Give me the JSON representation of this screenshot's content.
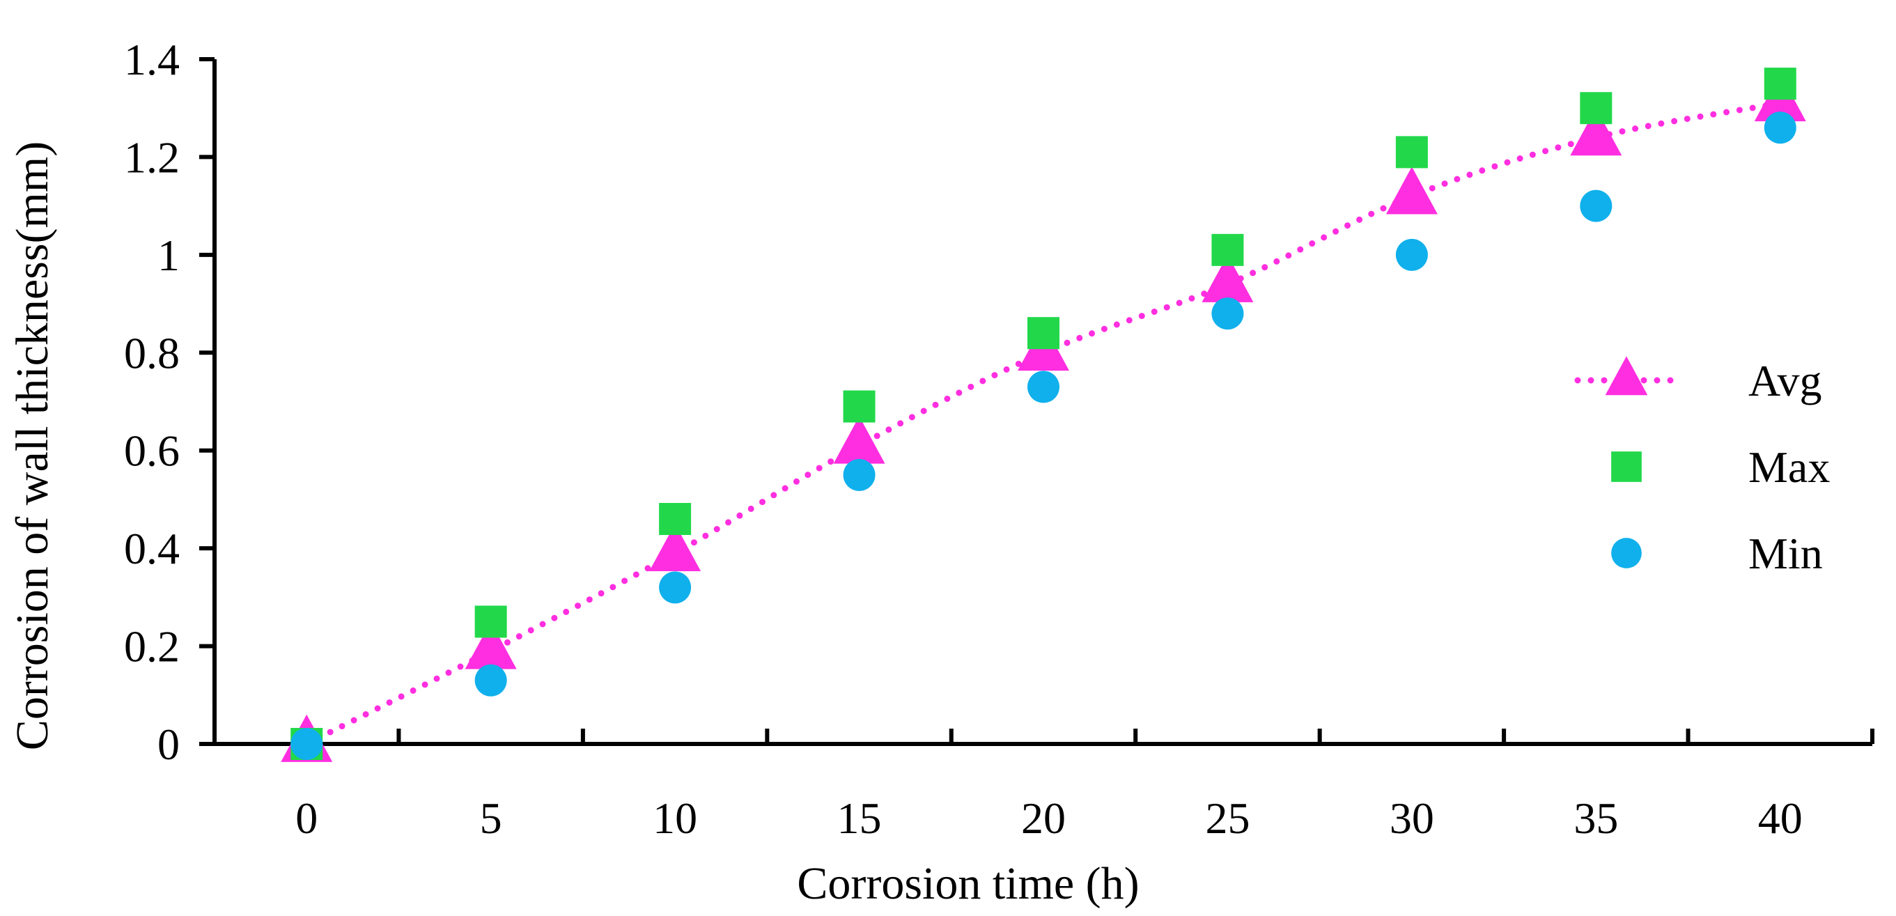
{
  "chart_data": {
    "type": "scatter",
    "title": "",
    "xlabel": "Corrosion time (h)",
    "ylabel": "Corrosion of wall thickness(mm)",
    "x": [
      0,
      5,
      10,
      15,
      20,
      25,
      30,
      35,
      40
    ],
    "x_tick_labels": [
      "0",
      "5",
      "10",
      "15",
      "20",
      "25",
      "30",
      "35",
      "40"
    ],
    "y_tick_labels": [
      "0",
      "0.2",
      "0.4",
      "0.6",
      "0.8",
      "1",
      "1.2",
      "1.4"
    ],
    "y_ticks": [
      0,
      0.2,
      0.4,
      0.6,
      0.8,
      1,
      1.2,
      1.4
    ],
    "xlim": [
      -2.5,
      42.5
    ],
    "ylim": [
      0,
      1.4
    ],
    "grid": false,
    "legend_position": "right",
    "series": [
      {
        "name": "Avg",
        "marker": "triangle",
        "line": "dotted",
        "color": "#ff2ee0",
        "values": [
          0.0,
          0.19,
          0.39,
          0.61,
          0.8,
          0.94,
          1.12,
          1.24,
          1.31
        ]
      },
      {
        "name": "Max",
        "marker": "square",
        "line": "none",
        "color": "#22d84a",
        "values": [
          0.0,
          0.25,
          0.46,
          0.69,
          0.84,
          1.01,
          1.21,
          1.3,
          1.35
        ]
      },
      {
        "name": "Min",
        "marker": "circle",
        "line": "none",
        "color": "#0fb0ec",
        "values": [
          0.0,
          0.13,
          0.32,
          0.55,
          0.73,
          0.88,
          1.0,
          1.1,
          1.26
        ]
      }
    ]
  }
}
